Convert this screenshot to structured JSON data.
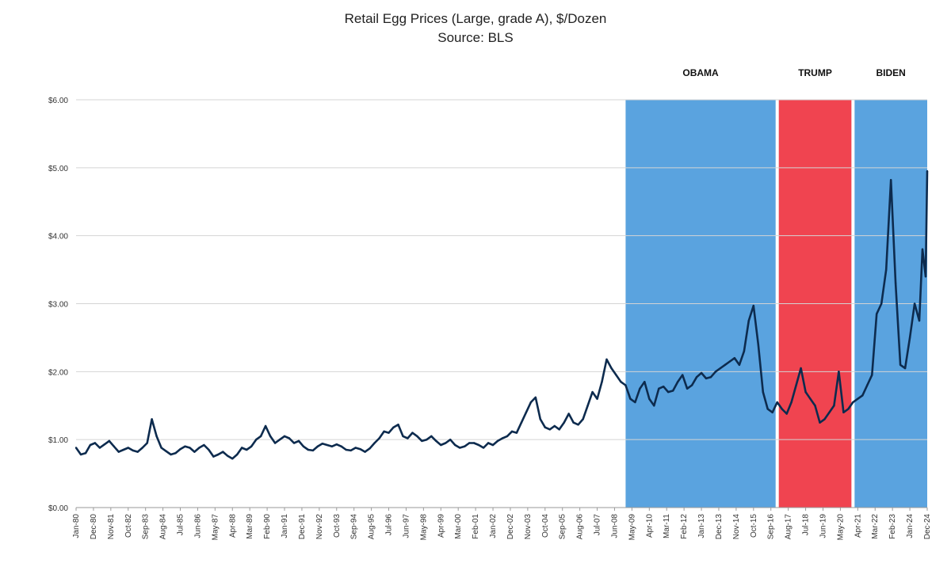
{
  "chart_data": {
    "type": "line",
    "title": "Retail Egg Prices (Large, grade A), $/Dozen",
    "subtitle": "Source: BLS",
    "xlabel": "",
    "ylabel": "",
    "ylim": [
      0,
      6
    ],
    "yticks": [
      "$0.00",
      "$1.00",
      "$2.00",
      "$3.00",
      "$4.00",
      "$5.00",
      "$6.00"
    ],
    "grid": true,
    "legend": "none",
    "x_range": [
      "1980-01",
      "2024-12"
    ],
    "xtick_labels": [
      {
        "label": "Jan-80",
        "date": "1980-01"
      },
      {
        "label": "Dec-80",
        "date": "1980-12"
      },
      {
        "label": "Nov-81",
        "date": "1981-11"
      },
      {
        "label": "Oct-82",
        "date": "1982-10"
      },
      {
        "label": "Sep-83",
        "date": "1983-09"
      },
      {
        "label": "Aug-84",
        "date": "1984-08"
      },
      {
        "label": "Jul-85",
        "date": "1985-07"
      },
      {
        "label": "Jun-86",
        "date": "1986-06"
      },
      {
        "label": "May-87",
        "date": "1987-05"
      },
      {
        "label": "Apr-88",
        "date": "1988-04"
      },
      {
        "label": "Mar-89",
        "date": "1989-03"
      },
      {
        "label": "Feb-90",
        "date": "1990-02"
      },
      {
        "label": "Jan-91",
        "date": "1991-01"
      },
      {
        "label": "Dec-91",
        "date": "1991-12"
      },
      {
        "label": "Nov-92",
        "date": "1992-11"
      },
      {
        "label": "Oct-93",
        "date": "1993-10"
      },
      {
        "label": "Sep-94",
        "date": "1994-09"
      },
      {
        "label": "Aug-95",
        "date": "1995-08"
      },
      {
        "label": "Jul-96",
        "date": "1996-07"
      },
      {
        "label": "Jun-97",
        "date": "1997-06"
      },
      {
        "label": "May-98",
        "date": "1998-05"
      },
      {
        "label": "Apr-99",
        "date": "1999-04"
      },
      {
        "label": "Mar-00",
        "date": "2000-03"
      },
      {
        "label": "Feb-01",
        "date": "2001-02"
      },
      {
        "label": "Jan-02",
        "date": "2002-01"
      },
      {
        "label": "Dec-02",
        "date": "2002-12"
      },
      {
        "label": "Nov-03",
        "date": "2003-11"
      },
      {
        "label": "Oct-04",
        "date": "2004-10"
      },
      {
        "label": "Sep-05",
        "date": "2005-09"
      },
      {
        "label": "Aug-06",
        "date": "2006-08"
      },
      {
        "label": "Jul-07",
        "date": "2007-07"
      },
      {
        "label": "Jun-08",
        "date": "2008-06"
      },
      {
        "label": "May-09",
        "date": "2009-05"
      },
      {
        "label": "Apr-10",
        "date": "2010-04"
      },
      {
        "label": "Mar-11",
        "date": "2011-03"
      },
      {
        "label": "Feb-12",
        "date": "2012-02"
      },
      {
        "label": "Jan-13",
        "date": "2013-01"
      },
      {
        "label": "Dec-13",
        "date": "2013-12"
      },
      {
        "label": "Nov-14",
        "date": "2014-11"
      },
      {
        "label": "Oct-15",
        "date": "2015-10"
      },
      {
        "label": "Sep-16",
        "date": "2016-09"
      },
      {
        "label": "Aug-17",
        "date": "2017-08"
      },
      {
        "label": "Jul-18",
        "date": "2018-07"
      },
      {
        "label": "Jun-19",
        "date": "2019-06"
      },
      {
        "label": "May-20",
        "date": "2020-05"
      },
      {
        "label": "Apr-21",
        "date": "2021-04"
      },
      {
        "label": "Mar-22",
        "date": "2022-03"
      },
      {
        "label": "Feb-23",
        "date": "2023-02"
      },
      {
        "label": "Jan-24",
        "date": "2024-01"
      },
      {
        "label": "Dec-24",
        "date": "2024-12"
      }
    ],
    "bands": [
      {
        "label": "OBAMA",
        "start": "2009-01",
        "end": "2017-01",
        "color": "#5aa3df"
      },
      {
        "label": "TRUMP",
        "start": "2017-01",
        "end": "2021-01",
        "color": "#f04450"
      },
      {
        "label": "BIDEN",
        "start": "2021-01",
        "end": "2024-12",
        "color": "#5aa3df"
      }
    ],
    "series": [
      {
        "color": "#0d2b4e",
        "points": [
          [
            "1980-01",
            0.88
          ],
          [
            "1980-04",
            0.78
          ],
          [
            "1980-07",
            0.8
          ],
          [
            "1980-10",
            0.92
          ],
          [
            "1981-01",
            0.95
          ],
          [
            "1981-04",
            0.88
          ],
          [
            "1981-07",
            0.93
          ],
          [
            "1981-10",
            0.98
          ],
          [
            "1982-01",
            0.9
          ],
          [
            "1982-04",
            0.82
          ],
          [
            "1982-07",
            0.85
          ],
          [
            "1982-10",
            0.88
          ],
          [
            "1983-01",
            0.84
          ],
          [
            "1983-04",
            0.82
          ],
          [
            "1983-07",
            0.88
          ],
          [
            "1983-10",
            0.95
          ],
          [
            "1984-01",
            1.3
          ],
          [
            "1984-04",
            1.05
          ],
          [
            "1984-07",
            0.88
          ],
          [
            "1984-10",
            0.83
          ],
          [
            "1985-01",
            0.78
          ],
          [
            "1985-04",
            0.8
          ],
          [
            "1985-07",
            0.86
          ],
          [
            "1985-10",
            0.9
          ],
          [
            "1986-01",
            0.88
          ],
          [
            "1986-04",
            0.82
          ],
          [
            "1986-07",
            0.88
          ],
          [
            "1986-10",
            0.92
          ],
          [
            "1987-01",
            0.85
          ],
          [
            "1987-04",
            0.75
          ],
          [
            "1987-07",
            0.78
          ],
          [
            "1987-10",
            0.82
          ],
          [
            "1988-01",
            0.76
          ],
          [
            "1988-04",
            0.72
          ],
          [
            "1988-07",
            0.78
          ],
          [
            "1988-10",
            0.88
          ],
          [
            "1989-01",
            0.85
          ],
          [
            "1989-04",
            0.9
          ],
          [
            "1989-07",
            1.0
          ],
          [
            "1989-10",
            1.05
          ],
          [
            "1990-01",
            1.2
          ],
          [
            "1990-04",
            1.05
          ],
          [
            "1990-07",
            0.95
          ],
          [
            "1990-10",
            1.0
          ],
          [
            "1991-01",
            1.05
          ],
          [
            "1991-04",
            1.02
          ],
          [
            "1991-07",
            0.95
          ],
          [
            "1991-10",
            0.98
          ],
          [
            "1992-01",
            0.9
          ],
          [
            "1992-04",
            0.85
          ],
          [
            "1992-07",
            0.84
          ],
          [
            "1992-10",
            0.9
          ],
          [
            "1993-01",
            0.94
          ],
          [
            "1993-04",
            0.92
          ],
          [
            "1993-07",
            0.9
          ],
          [
            "1993-10",
            0.93
          ],
          [
            "1994-01",
            0.9
          ],
          [
            "1994-04",
            0.85
          ],
          [
            "1994-07",
            0.84
          ],
          [
            "1994-10",
            0.88
          ],
          [
            "1995-01",
            0.86
          ],
          [
            "1995-04",
            0.82
          ],
          [
            "1995-07",
            0.87
          ],
          [
            "1995-10",
            0.95
          ],
          [
            "1996-01",
            1.02
          ],
          [
            "1996-04",
            1.12
          ],
          [
            "1996-07",
            1.1
          ],
          [
            "1996-10",
            1.18
          ],
          [
            "1997-01",
            1.22
          ],
          [
            "1997-04",
            1.05
          ],
          [
            "1997-07",
            1.02
          ],
          [
            "1997-10",
            1.1
          ],
          [
            "1998-01",
            1.05
          ],
          [
            "1998-04",
            0.98
          ],
          [
            "1998-07",
            1.0
          ],
          [
            "1998-10",
            1.05
          ],
          [
            "1999-01",
            0.98
          ],
          [
            "1999-04",
            0.92
          ],
          [
            "1999-07",
            0.95
          ],
          [
            "1999-10",
            1.0
          ],
          [
            "2000-01",
            0.92
          ],
          [
            "2000-04",
            0.88
          ],
          [
            "2000-07",
            0.9
          ],
          [
            "2000-10",
            0.95
          ],
          [
            "2001-01",
            0.95
          ],
          [
            "2001-04",
            0.92
          ],
          [
            "2001-07",
            0.88
          ],
          [
            "2001-10",
            0.95
          ],
          [
            "2002-01",
            0.92
          ],
          [
            "2002-04",
            0.98
          ],
          [
            "2002-07",
            1.02
          ],
          [
            "2002-10",
            1.05
          ],
          [
            "2003-01",
            1.12
          ],
          [
            "2003-04",
            1.1
          ],
          [
            "2003-07",
            1.25
          ],
          [
            "2003-10",
            1.4
          ],
          [
            "2004-01",
            1.55
          ],
          [
            "2004-04",
            1.62
          ],
          [
            "2004-07",
            1.3
          ],
          [
            "2004-10",
            1.18
          ],
          [
            "2005-01",
            1.15
          ],
          [
            "2005-04",
            1.2
          ],
          [
            "2005-07",
            1.15
          ],
          [
            "2005-10",
            1.25
          ],
          [
            "2006-01",
            1.38
          ],
          [
            "2006-04",
            1.25
          ],
          [
            "2006-07",
            1.22
          ],
          [
            "2006-10",
            1.3
          ],
          [
            "2007-01",
            1.5
          ],
          [
            "2007-04",
            1.7
          ],
          [
            "2007-07",
            1.6
          ],
          [
            "2007-10",
            1.85
          ],
          [
            "2008-01",
            2.18
          ],
          [
            "2008-04",
            2.05
          ],
          [
            "2008-07",
            1.95
          ],
          [
            "2008-10",
            1.85
          ],
          [
            "2009-01",
            1.8
          ],
          [
            "2009-04",
            1.6
          ],
          [
            "2009-07",
            1.55
          ],
          [
            "2009-10",
            1.75
          ],
          [
            "2010-01",
            1.85
          ],
          [
            "2010-04",
            1.6
          ],
          [
            "2010-07",
            1.5
          ],
          [
            "2010-10",
            1.75
          ],
          [
            "2011-01",
            1.78
          ],
          [
            "2011-04",
            1.7
          ],
          [
            "2011-07",
            1.72
          ],
          [
            "2011-10",
            1.85
          ],
          [
            "2012-01",
            1.95
          ],
          [
            "2012-04",
            1.75
          ],
          [
            "2012-07",
            1.8
          ],
          [
            "2012-10",
            1.92
          ],
          [
            "2013-01",
            1.98
          ],
          [
            "2013-04",
            1.9
          ],
          [
            "2013-07",
            1.92
          ],
          [
            "2013-10",
            2.0
          ],
          [
            "2014-01",
            2.05
          ],
          [
            "2014-04",
            2.1
          ],
          [
            "2014-07",
            2.15
          ],
          [
            "2014-10",
            2.2
          ],
          [
            "2015-01",
            2.1
          ],
          [
            "2015-04",
            2.3
          ],
          [
            "2015-07",
            2.75
          ],
          [
            "2015-10",
            2.97
          ],
          [
            "2016-01",
            2.4
          ],
          [
            "2016-04",
            1.7
          ],
          [
            "2016-07",
            1.45
          ],
          [
            "2016-10",
            1.4
          ],
          [
            "2017-01",
            1.55
          ],
          [
            "2017-04",
            1.45
          ],
          [
            "2017-07",
            1.38
          ],
          [
            "2017-10",
            1.55
          ],
          [
            "2018-01",
            1.8
          ],
          [
            "2018-04",
            2.05
          ],
          [
            "2018-07",
            1.7
          ],
          [
            "2018-10",
            1.6
          ],
          [
            "2019-01",
            1.5
          ],
          [
            "2019-04",
            1.25
          ],
          [
            "2019-07",
            1.3
          ],
          [
            "2019-10",
            1.4
          ],
          [
            "2020-01",
            1.5
          ],
          [
            "2020-04",
            2.0
          ],
          [
            "2020-07",
            1.4
          ],
          [
            "2020-10",
            1.45
          ],
          [
            "2021-01",
            1.55
          ],
          [
            "2021-04",
            1.6
          ],
          [
            "2021-07",
            1.65
          ],
          [
            "2021-10",
            1.8
          ],
          [
            "2022-01",
            1.95
          ],
          [
            "2022-04",
            2.85
          ],
          [
            "2022-07",
            3.0
          ],
          [
            "2022-10",
            3.5
          ],
          [
            "2023-01",
            4.82
          ],
          [
            "2023-04",
            3.3
          ],
          [
            "2023-07",
            2.1
          ],
          [
            "2023-10",
            2.05
          ],
          [
            "2024-01",
            2.5
          ],
          [
            "2024-04",
            3.0
          ],
          [
            "2024-07",
            2.75
          ],
          [
            "2024-09",
            3.8
          ],
          [
            "2024-11",
            3.4
          ],
          [
            "2024-12",
            4.95
          ]
        ]
      }
    ]
  }
}
